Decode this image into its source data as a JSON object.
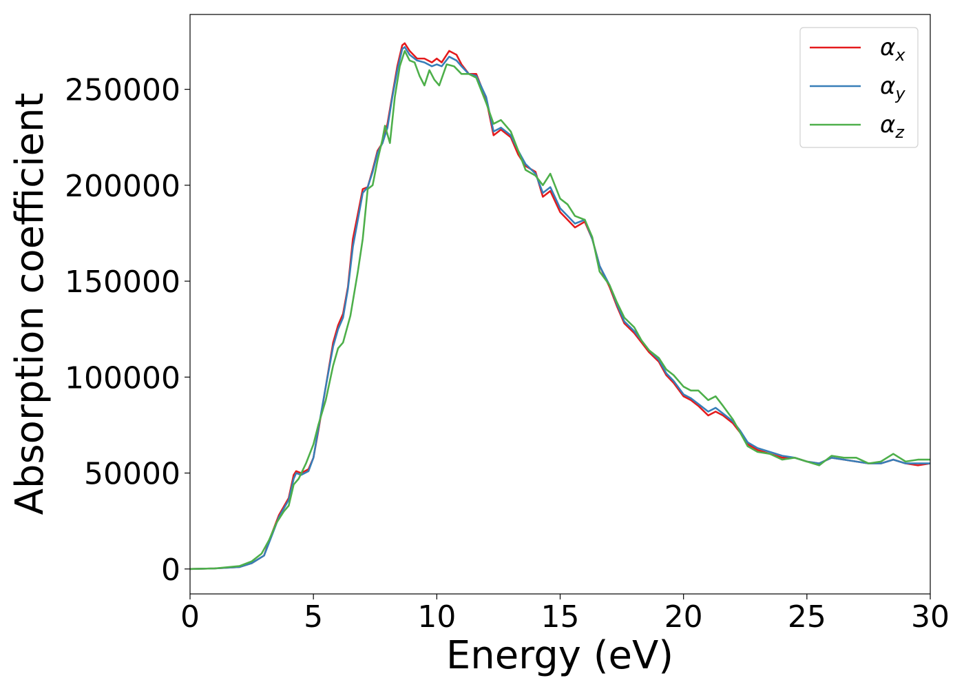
{
  "chart_data": {
    "type": "line",
    "xlabel": "Energy (eV)",
    "ylabel": "Absorption coefficient",
    "xlim": [
      0,
      30
    ],
    "ylim": [
      -13000,
      289000
    ],
    "xticks": [
      "0",
      "5",
      "10",
      "15",
      "20",
      "25",
      "30"
    ],
    "yticks": [
      "0",
      "50000",
      "100000",
      "150000",
      "200000",
      "250000"
    ],
    "grid": false,
    "legend_position": "top-right",
    "series": [
      {
        "name": "α_x",
        "legend_symbol": "α",
        "legend_sub": "x",
        "color": "#e41a1c",
        "x": [
          0,
          1,
          2,
          2.5,
          3,
          3.3,
          3.6,
          4,
          4.2,
          4.3,
          4.5,
          4.8,
          5,
          5.2,
          5.5,
          5.8,
          6,
          6.2,
          6.4,
          6.6,
          6.8,
          7,
          7.2,
          7.4,
          7.6,
          7.8,
          8,
          8.2,
          8.4,
          8.6,
          8.7,
          8.9,
          9.2,
          9.5,
          9.8,
          10,
          10.2,
          10.5,
          10.8,
          11,
          11.3,
          11.6,
          12,
          12.3,
          12.6,
          13,
          13.3,
          13.6,
          14,
          14.3,
          14.6,
          15,
          15.3,
          15.6,
          16,
          16.3,
          16.6,
          17,
          17.3,
          17.6,
          18,
          18.3,
          18.6,
          19,
          19.3,
          19.6,
          20,
          20.3,
          20.6,
          21,
          21.3,
          21.6,
          22,
          22.3,
          22.6,
          23,
          23.5,
          24,
          24.5,
          25,
          25.5,
          26,
          26.5,
          27,
          27.5,
          28,
          28.5,
          29,
          29.5,
          30
        ],
        "y": [
          0,
          300,
          1000,
          3000,
          7000,
          18000,
          28000,
          37000,
          49000,
          51000,
          50000,
          52000,
          58000,
          72000,
          95000,
          118000,
          127000,
          133000,
          147000,
          172000,
          185000,
          198000,
          199000,
          208000,
          218000,
          222000,
          232000,
          247000,
          262000,
          273000,
          274000,
          270000,
          266000,
          266000,
          264000,
          266000,
          264000,
          270000,
          268000,
          263000,
          258000,
          258000,
          245000,
          226000,
          229000,
          225000,
          216000,
          210000,
          207000,
          194000,
          197000,
          186000,
          182000,
          178000,
          181000,
          172000,
          158000,
          147000,
          137000,
          128000,
          123000,
          118000,
          113000,
          108000,
          101000,
          97000,
          90000,
          88000,
          85000,
          80000,
          82000,
          80000,
          76000,
          71000,
          65000,
          62000,
          60000,
          58000,
          58000,
          56000,
          55000,
          58000,
          57000,
          56000,
          55000,
          55000,
          57000,
          55000,
          54000,
          55000
        ]
      },
      {
        "name": "α_y",
        "legend_symbol": "α",
        "legend_sub": "y",
        "color": "#377eb8",
        "x": [
          0,
          1,
          2,
          2.5,
          3,
          3.3,
          3.6,
          4,
          4.2,
          4.3,
          4.5,
          4.8,
          5,
          5.2,
          5.5,
          5.8,
          6,
          6.2,
          6.4,
          6.6,
          6.8,
          7,
          7.2,
          7.4,
          7.6,
          7.8,
          8,
          8.2,
          8.4,
          8.6,
          8.7,
          8.9,
          9.2,
          9.5,
          9.8,
          10,
          10.2,
          10.5,
          10.8,
          11,
          11.3,
          11.6,
          12,
          12.3,
          12.6,
          13,
          13.3,
          13.6,
          14,
          14.3,
          14.6,
          15,
          15.3,
          15.6,
          16,
          16.3,
          16.6,
          17,
          17.3,
          17.6,
          18,
          18.3,
          18.6,
          19,
          19.3,
          19.6,
          20,
          20.3,
          20.6,
          21,
          21.3,
          21.6,
          22,
          22.3,
          22.6,
          23,
          23.5,
          24,
          24.5,
          25,
          25.5,
          26,
          26.5,
          27,
          27.5,
          28,
          28.5,
          29,
          29.5,
          30
        ],
        "y": [
          0,
          300,
          1000,
          3000,
          7000,
          17000,
          27000,
          36000,
          47000,
          50000,
          49000,
          51000,
          58000,
          73000,
          95000,
          116000,
          125000,
          131000,
          146000,
          168000,
          182000,
          196000,
          199000,
          207000,
          217000,
          222000,
          230000,
          246000,
          260000,
          271000,
          272000,
          268000,
          265000,
          264000,
          262000,
          263000,
          262000,
          267000,
          265000,
          262000,
          258000,
          257000,
          246000,
          228000,
          230000,
          226000,
          218000,
          211000,
          206000,
          196000,
          199000,
          188000,
          184000,
          180000,
          182000,
          172000,
          158000,
          148000,
          138000,
          129000,
          124000,
          119000,
          114000,
          109000,
          102000,
          98000,
          91000,
          89000,
          86000,
          82000,
          84000,
          81000,
          77000,
          72000,
          66000,
          63000,
          61000,
          59000,
          58000,
          56000,
          55000,
          58000,
          57000,
          56000,
          55000,
          55000,
          57000,
          55000,
          55000,
          55000
        ]
      },
      {
        "name": "α_z",
        "legend_symbol": "α",
        "legend_sub": "z",
        "color": "#4daf4a",
        "x": [
          0,
          1,
          2,
          2.5,
          2.9,
          3.2,
          3.5,
          3.8,
          4,
          4.2,
          4.4,
          4.7,
          5,
          5.2,
          5.5,
          5.8,
          6,
          6.2,
          6.5,
          6.8,
          7,
          7.2,
          7.4,
          7.6,
          7.8,
          7.9,
          8.1,
          8.3,
          8.5,
          8.7,
          8.9,
          9.1,
          9.3,
          9.5,
          9.7,
          9.9,
          10.1,
          10.4,
          10.7,
          11,
          11.3,
          11.6,
          12,
          12.3,
          12.6,
          13,
          13.3,
          13.6,
          14,
          14.3,
          14.6,
          15,
          15.3,
          15.6,
          16,
          16.3,
          16.6,
          17,
          17.3,
          17.6,
          18,
          18.3,
          18.6,
          19,
          19.3,
          19.6,
          20,
          20.3,
          20.6,
          21,
          21.3,
          21.6,
          22,
          22.3,
          22.6,
          23,
          23.5,
          24,
          24.5,
          25,
          25.5,
          26,
          26.5,
          27,
          27.5,
          28,
          28.5,
          29,
          29.5,
          30
        ],
        "y": [
          0,
          300,
          1500,
          4000,
          8000,
          15000,
          24000,
          30000,
          33000,
          44000,
          47000,
          55000,
          65000,
          75000,
          88000,
          106000,
          115000,
          118000,
          132000,
          155000,
          172000,
          198000,
          200000,
          213000,
          224000,
          231000,
          222000,
          246000,
          262000,
          270000,
          265000,
          264000,
          257000,
          252000,
          260000,
          255000,
          252000,
          263000,
          262000,
          258000,
          258000,
          256000,
          243000,
          232000,
          234000,
          228000,
          218000,
          208000,
          205000,
          200000,
          206000,
          193000,
          190000,
          184000,
          182000,
          173000,
          155000,
          148000,
          139000,
          131000,
          126000,
          119000,
          114000,
          110000,
          104000,
          101000,
          95000,
          93000,
          93000,
          88000,
          90000,
          85000,
          78000,
          71000,
          64000,
          61000,
          60000,
          57000,
          58000,
          56000,
          54000,
          59000,
          58000,
          58000,
          55000,
          56000,
          60000,
          56000,
          57000,
          57000
        ]
      }
    ]
  }
}
